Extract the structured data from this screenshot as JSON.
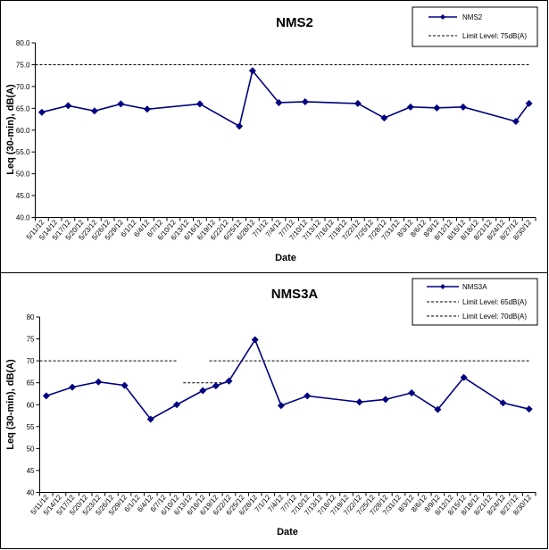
{
  "chart_data": [
    {
      "type": "line",
      "title": "NMS2",
      "xlabel": "Date",
      "ylabel": "Leq (30-min), dB(A)",
      "ylim": [
        40,
        80
      ],
      "y_ticks": [
        "40.0",
        "45.0",
        "50.0",
        "55.0",
        "60.0",
        "65.0",
        "70.0",
        "75.0",
        "80.0"
      ],
      "grid": false,
      "legend_position": "top-right",
      "categories": [
        "5/11/12",
        "5/14/12",
        "5/17/12",
        "5/20/12",
        "5/23/12",
        "5/26/12",
        "5/29/12",
        "6/1/12",
        "6/4/12",
        "6/7/12",
        "6/10/12",
        "6/13/12",
        "6/16/12",
        "6/19/12",
        "6/22/12",
        "6/25/12",
        "6/28/12",
        "7/1/12",
        "7/4/12",
        "7/7/12",
        "7/10/12",
        "7/13/12",
        "7/16/12",
        "7/19/12",
        "7/22/12",
        "7/25/12",
        "7/28/12",
        "7/31/12",
        "8/3/12",
        "8/6/12",
        "8/9/12",
        "8/12/12",
        "8/15/12",
        "8/18/12",
        "8/21/12",
        "8/24/12",
        "8/27/12",
        "8/30/12"
      ],
      "series": [
        {
          "name": "NMS2",
          "color": "#000080",
          "marker": "diamond",
          "points": [
            {
              "x": "5/11/12",
              "y": 64.1
            },
            {
              "x": "5/17/12",
              "y": 65.6
            },
            {
              "x": "5/23/12",
              "y": 64.4
            },
            {
              "x": "5/29/12",
              "y": 66.0
            },
            {
              "x": "6/4/12",
              "y": 64.8
            },
            {
              "x": "6/16/12",
              "y": 66.0
            },
            {
              "x": "6/25/12",
              "y": 60.9
            },
            {
              "x": "6/28/12",
              "y": 73.6
            },
            {
              "x": "7/4/12",
              "y": 66.3
            },
            {
              "x": "7/10/12",
              "y": 66.5
            },
            {
              "x": "7/22/12",
              "y": 66.1
            },
            {
              "x": "7/28/12",
              "y": 62.8
            },
            {
              "x": "8/3/12",
              "y": 65.3
            },
            {
              "x": "8/9/12",
              "y": 65.1
            },
            {
              "x": "8/15/12",
              "y": 65.3
            },
            {
              "x": "8/27/12",
              "y": 62.0
            },
            {
              "x": "8/30/12",
              "y": 66.1
            }
          ]
        }
      ],
      "limits": [
        {
          "name": "Limit Level: 75dB(A)",
          "color": "#000000",
          "segments": [
            {
              "from": "5/11/12",
              "to": "8/30/12",
              "y": 75
            }
          ]
        }
      ]
    },
    {
      "type": "line",
      "title": "NMS3A",
      "xlabel": "Date",
      "ylabel": "Leq (30-min), dB(A)",
      "ylim": [
        40,
        80
      ],
      "y_ticks": [
        "40",
        "45",
        "50",
        "55",
        "60",
        "65",
        "70",
        "75",
        "80"
      ],
      "grid": false,
      "legend_position": "top-right",
      "categories": [
        "5/11/12",
        "5/14/12",
        "5/17/12",
        "5/20/12",
        "5/23/12",
        "5/26/12",
        "5/29/12",
        "6/1/12",
        "6/4/12",
        "6/7/12",
        "6/10/12",
        "6/13/12",
        "6/16/12",
        "6/19/12",
        "6/22/12",
        "6/25/12",
        "6/28/12",
        "7/1/12",
        "7/4/12",
        "7/7/12",
        "7/10/12",
        "7/13/12",
        "7/16/12",
        "7/19/12",
        "7/22/12",
        "7/25/12",
        "7/28/12",
        "7/31/12",
        "8/3/12",
        "8/6/12",
        "8/9/12",
        "8/12/12",
        "8/15/12",
        "8/18/12",
        "8/21/12",
        "8/24/12",
        "8/27/12",
        "8/30/12"
      ],
      "series": [
        {
          "name": "NMS3A",
          "color": "#000080",
          "marker": "diamond",
          "points": [
            {
              "x": "5/11/12",
              "y": 62.0
            },
            {
              "x": "5/17/12",
              "y": 64.0
            },
            {
              "x": "5/23/12",
              "y": 65.2
            },
            {
              "x": "5/29/12",
              "y": 64.4
            },
            {
              "x": "6/4/12",
              "y": 56.7
            },
            {
              "x": "6/10/12",
              "y": 60.0
            },
            {
              "x": "6/16/12",
              "y": 63.2
            },
            {
              "x": "6/19/12",
              "y": 64.3
            },
            {
              "x": "6/22/12",
              "y": 65.4
            },
            {
              "x": "6/28/12",
              "y": 74.8
            },
            {
              "x": "7/4/12",
              "y": 59.8
            },
            {
              "x": "7/10/12",
              "y": 62.0
            },
            {
              "x": "7/22/12",
              "y": 60.6
            },
            {
              "x": "7/28/12",
              "y": 61.2
            },
            {
              "x": "8/3/12",
              "y": 62.7
            },
            {
              "x": "8/9/12",
              "y": 58.9
            },
            {
              "x": "8/15/12",
              "y": 66.2
            },
            {
              "x": "8/24/12",
              "y": 60.4
            },
            {
              "x": "8/30/12",
              "y": 59.0
            }
          ]
        }
      ],
      "limits": [
        {
          "name": "Limit Level:  65dB(A)",
          "color": "#000000",
          "segments": [
            {
              "from": "6/13/12",
              "to": "6/22/12",
              "y": 65
            }
          ]
        },
        {
          "name": "Limit Level:  70dB(A)",
          "color": "#000000",
          "segments": [
            {
              "from": "5/11/12",
              "to": "6/10/12",
              "y": 70
            },
            {
              "from": "6/19/12",
              "to": "8/30/12",
              "y": 70
            }
          ]
        }
      ]
    }
  ]
}
